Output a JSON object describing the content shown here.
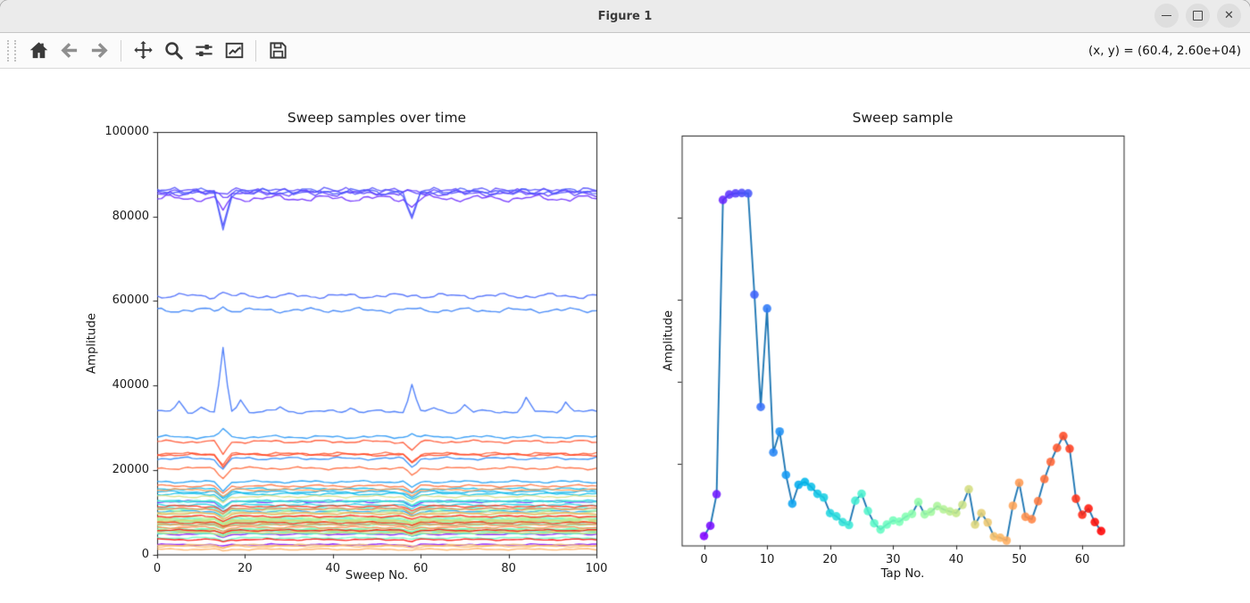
{
  "window": {
    "title": "Figure 1",
    "controls": [
      {
        "icon": "minimize-icon"
      },
      {
        "icon": "maximize-icon"
      },
      {
        "icon": "close-icon"
      }
    ]
  },
  "toolbar": {
    "tools": [
      {
        "icon": "home-icon"
      },
      {
        "icon": "back-arrow-icon"
      },
      {
        "icon": "forward-arrow-icon"
      },
      {
        "icon": "pan-icon"
      },
      {
        "icon": "zoom-magnifier-icon"
      },
      {
        "icon": "subplot-sliders-icon"
      },
      {
        "icon": "axes-edit-icon"
      },
      {
        "icon": "save-floppy-icon"
      }
    ],
    "coordinate_readout": "(x, y) = (60.4, 2.60e+04)"
  },
  "chart_data": [
    {
      "type": "line",
      "title": "Sweep samples over time",
      "xlabel": "Sweep No.",
      "ylabel": "Amplitude",
      "xlim": [
        0,
        100
      ],
      "ylim": [
        0,
        100000
      ],
      "xticks": [
        0,
        20,
        40,
        60,
        80,
        100
      ],
      "yticks": [
        0,
        20000,
        40000,
        60000,
        80000,
        100000
      ],
      "grid": false,
      "legend": "none",
      "n_sweeps": 100,
      "n_lines": 64,
      "line_colormap": "rainbow",
      "description": "64 tap amplitude traces over 100 sweeps; each line stays near its tap amplitude (see chart 2 values) with small noise; dip/spike events at sweeps 15 and 58",
      "event_sweeps": [
        15,
        58
      ],
      "events": {
        "3": [
          [
            15,
            -2800
          ],
          [
            58,
            -1900
          ]
        ],
        "4": [
          [
            15,
            -500
          ]
        ],
        "5": [
          [
            15,
            -350
          ]
        ],
        "8": [
          [
            15,
            900
          ],
          [
            58,
            350
          ]
        ],
        "9": [
          [
            5,
            2300
          ],
          [
            10,
            1200
          ],
          [
            15,
            14800
          ],
          [
            19,
            3000
          ],
          [
            28,
            1000
          ],
          [
            44,
            1100
          ],
          [
            58,
            6800
          ],
          [
            63,
            800
          ],
          [
            70,
            1600
          ],
          [
            84,
            3100
          ],
          [
            93,
            2400
          ]
        ],
        "10": [
          [
            15,
            800
          ],
          [
            58,
            300
          ]
        ],
        "12": [
          [
            15,
            1900
          ],
          [
            58,
            900
          ]
        ]
      },
      "default_dip": {
        "15": [
          0.1,
          250
        ],
        "58": [
          0.075,
          180
        ]
      }
    },
    {
      "type": "line-scatter",
      "title": "Sweep sample",
      "xlabel": "Tap No.",
      "ylabel": "Amplitude",
      "xticks": [
        0,
        10,
        20,
        30,
        40,
        50,
        60
      ],
      "yticks": [
        20000,
        40000,
        60000,
        80000
      ],
      "ytick_labels_shown": false,
      "ylim": [
        0,
        100000
      ],
      "grid": false,
      "line_color": "#1f77b4",
      "marker_colormap": "rainbow",
      "x": [
        0,
        1,
        2,
        3,
        4,
        5,
        6,
        7,
        8,
        9,
        10,
        11,
        12,
        13,
        14,
        15,
        16,
        17,
        18,
        19,
        20,
        21,
        22,
        23,
        24,
        25,
        26,
        27,
        28,
        29,
        30,
        31,
        32,
        33,
        34,
        35,
        36,
        37,
        38,
        39,
        40,
        41,
        42,
        43,
        44,
        45,
        46,
        47,
        48,
        49,
        50,
        51,
        52,
        53,
        54,
        55,
        56,
        57,
        58,
        59,
        60,
        61,
        62,
        63
      ],
      "values": [
        2300,
        4800,
        12500,
        84300,
        85600,
        85900,
        86000,
        85900,
        61200,
        33800,
        57800,
        22700,
        27800,
        17200,
        10200,
        14800,
        15500,
        14300,
        12600,
        11700,
        7900,
        7100,
        5700,
        5000,
        10900,
        12600,
        8400,
        5400,
        3900,
        5100,
        6100,
        5800,
        7000,
        7700,
        10600,
        7600,
        8200,
        9600,
        8800,
        8300,
        7900,
        9900,
        13700,
        5100,
        7900,
        5600,
        2200,
        1900,
        1200,
        9700,
        15300,
        7000,
        6400,
        10800,
        16200,
        20400,
        23800,
        26700,
        23600,
        11400,
        7500,
        9000,
        5700,
        3500
      ]
    }
  ]
}
